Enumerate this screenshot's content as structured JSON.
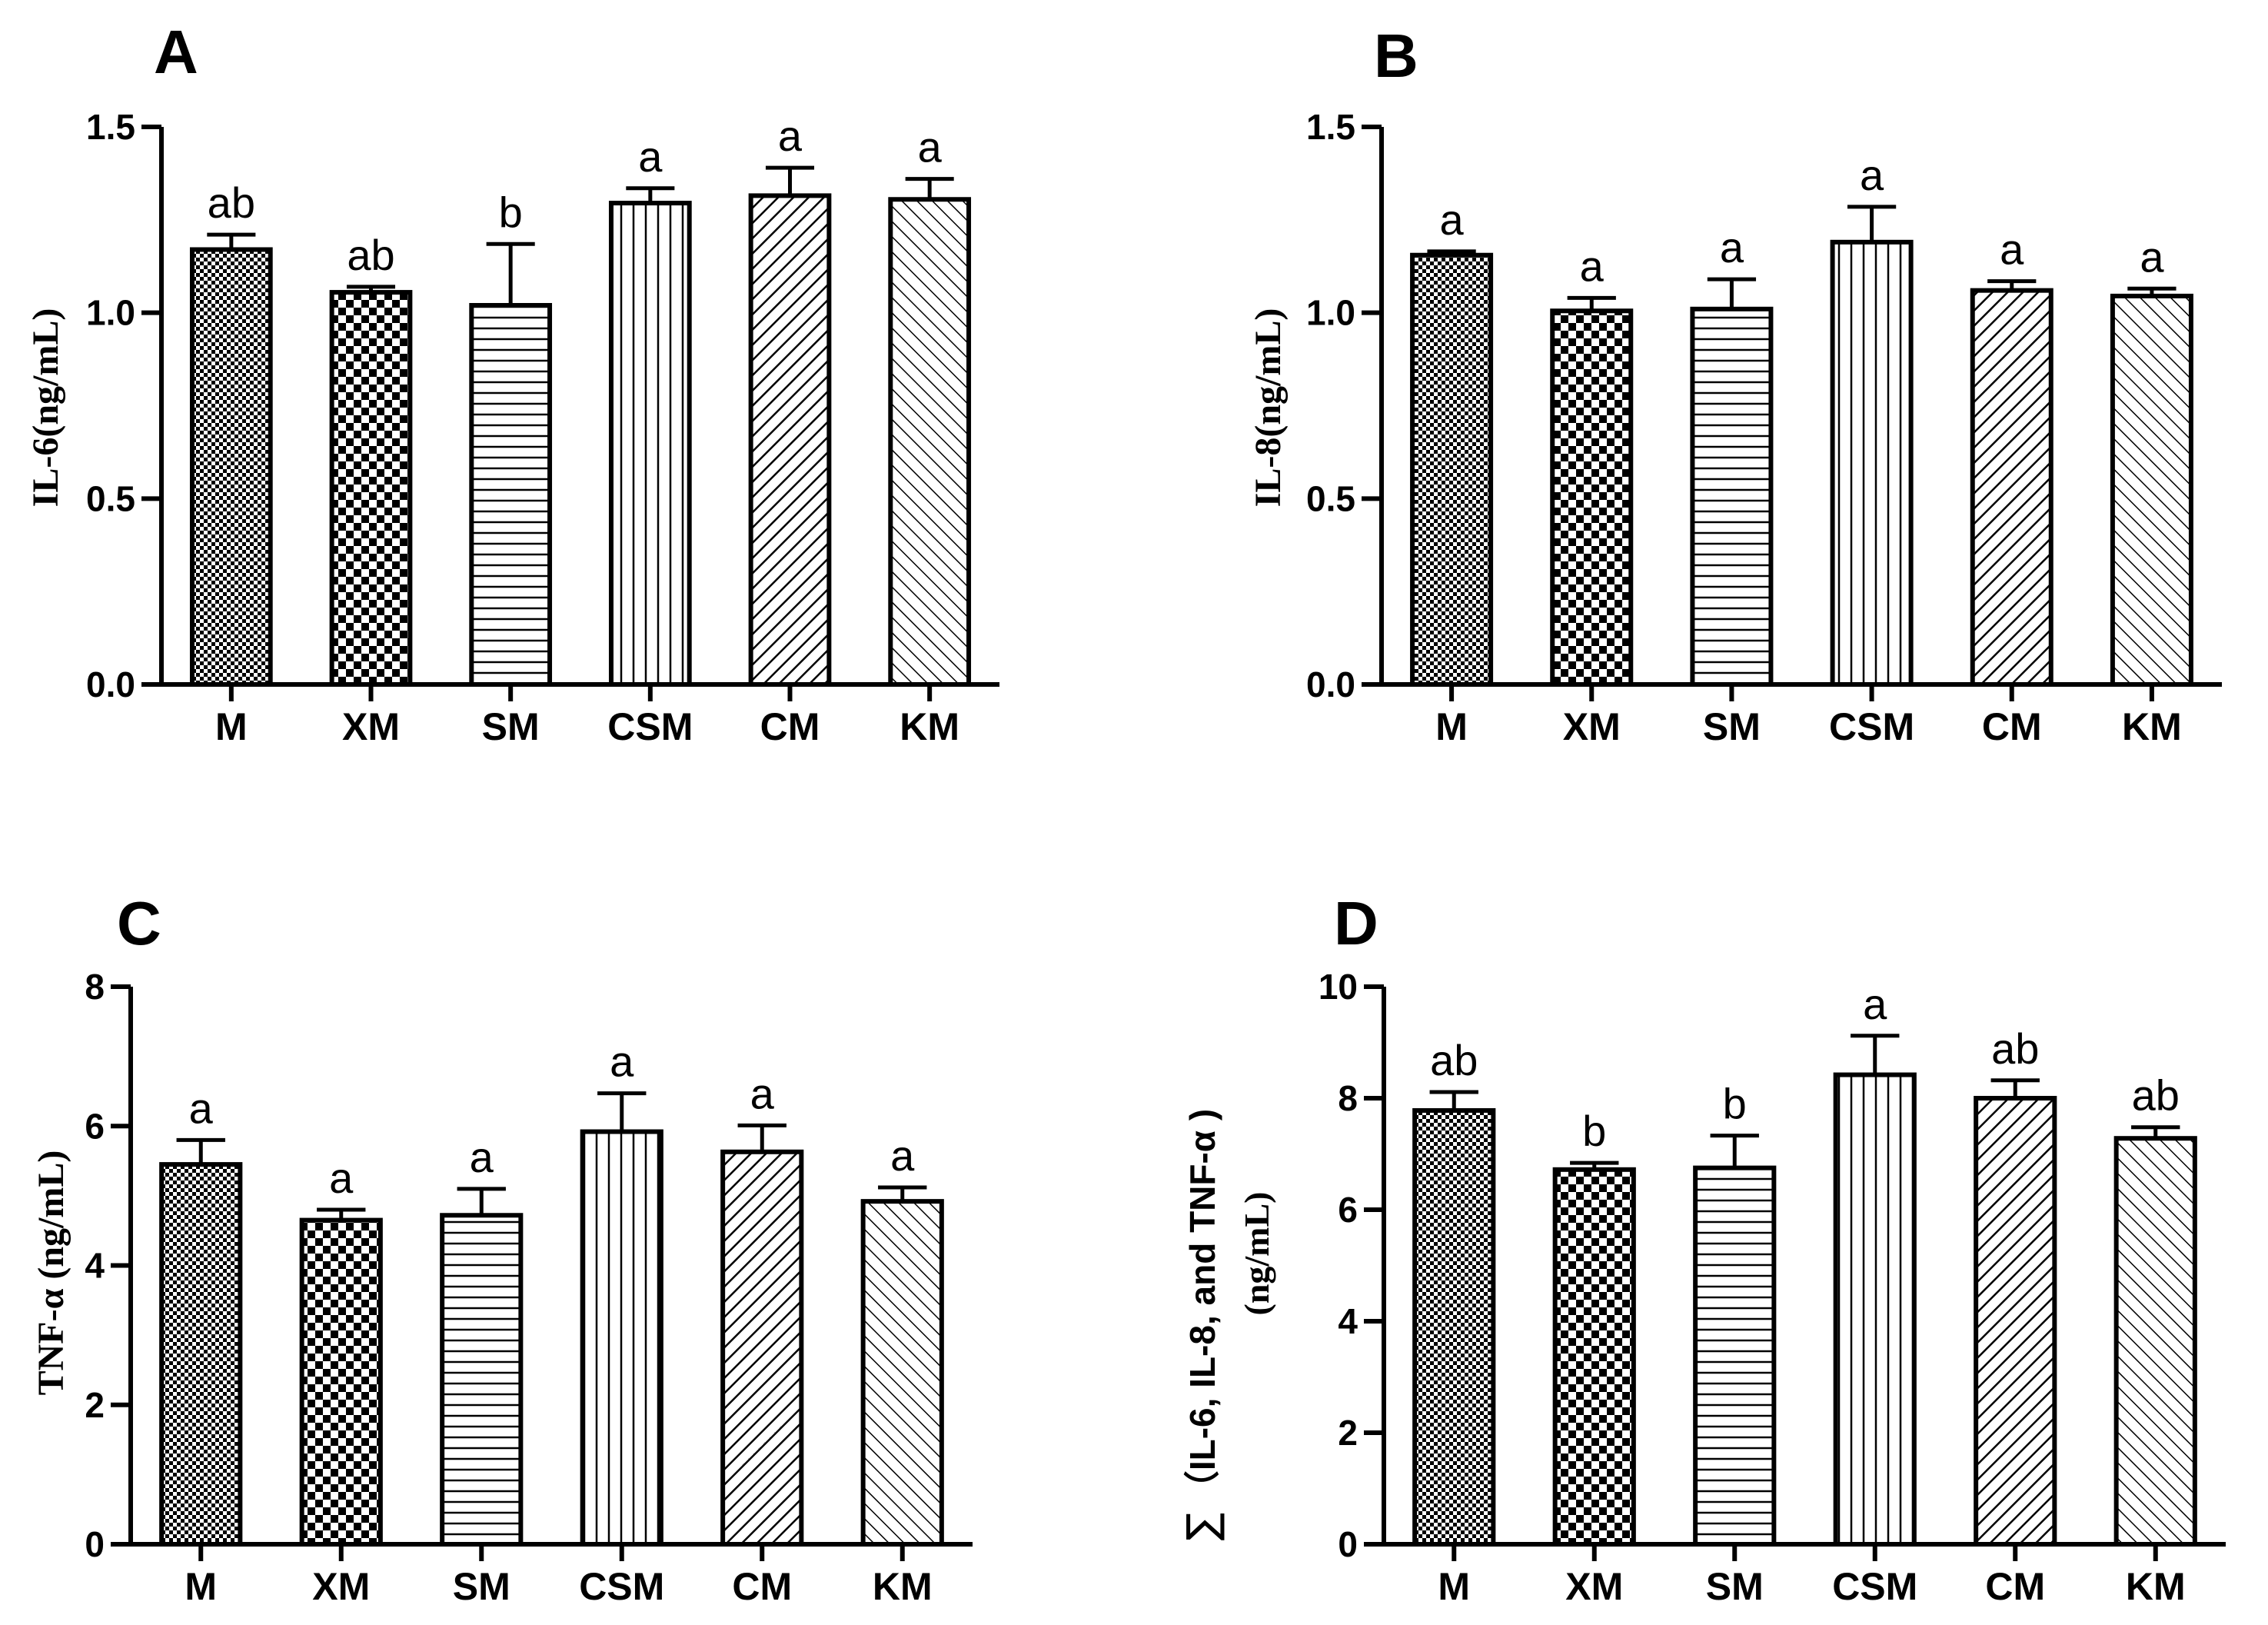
{
  "chart_data": [
    {
      "type": "bar",
      "panel": "A",
      "ylabel": "IL-6(ng/mL)",
      "categories": [
        "M",
        "XM",
        "SM",
        "CSM",
        "CM",
        "KM"
      ],
      "values": [
        1.17,
        1.055,
        1.02,
        1.295,
        1.315,
        1.305
      ],
      "errors": [
        0.04,
        0.015,
        0.165,
        0.04,
        0.075,
        0.055
      ],
      "significance": [
        "ab",
        "ab",
        "b",
        "a",
        "a",
        "a"
      ],
      "ylim": [
        0,
        1.5
      ],
      "yticks": [
        "0.0",
        "0.5",
        "1.0",
        "1.5"
      ]
    },
    {
      "type": "bar",
      "panel": "B",
      "ylabel": "IL-8(ng/mL)",
      "categories": [
        "M",
        "XM",
        "SM",
        "CSM",
        "CM",
        "KM"
      ],
      "values": [
        1.155,
        1.005,
        1.01,
        1.19,
        1.06,
        1.045
      ],
      "errors": [
        0.01,
        0.035,
        0.08,
        0.095,
        0.025,
        0.02
      ],
      "significance": [
        "a",
        "a",
        "a",
        "a",
        "a",
        "a"
      ],
      "ylim": [
        0,
        1.5
      ],
      "yticks": [
        "0.0",
        "0.5",
        "1.0",
        "1.5"
      ]
    },
    {
      "type": "bar",
      "panel": "C",
      "ylabel": "TNF-α (ng/mL)",
      "categories": [
        "M",
        "XM",
        "SM",
        "CSM",
        "CM",
        "KM"
      ],
      "values": [
        5.45,
        4.65,
        4.72,
        5.92,
        5.63,
        4.92
      ],
      "errors": [
        0.35,
        0.15,
        0.38,
        0.55,
        0.38,
        0.2
      ],
      "significance": [
        "a",
        "a",
        "a",
        "a",
        "a",
        "a"
      ],
      "ylim": [
        0,
        8
      ],
      "yticks": [
        "0",
        "2",
        "4",
        "6",
        "8"
      ]
    },
    {
      "type": "bar",
      "panel": "D",
      "ylabel": "（IL-6, IL-8, and TNF-α )",
      "ylabel2": "(ng/mL)",
      "ylabel_prefix": "∑",
      "categories": [
        "M",
        "XM",
        "SM",
        "CSM",
        "CM",
        "KM"
      ],
      "values": [
        7.78,
        6.72,
        6.75,
        8.42,
        8.0,
        7.28
      ],
      "errors": [
        0.33,
        0.12,
        0.58,
        0.7,
        0.32,
        0.2
      ],
      "significance": [
        "ab",
        "b",
        "b",
        "a",
        "ab",
        "ab"
      ],
      "ylim": [
        0,
        10
      ],
      "yticks": [
        "0",
        "2",
        "4",
        "6",
        "8",
        "10"
      ]
    }
  ]
}
